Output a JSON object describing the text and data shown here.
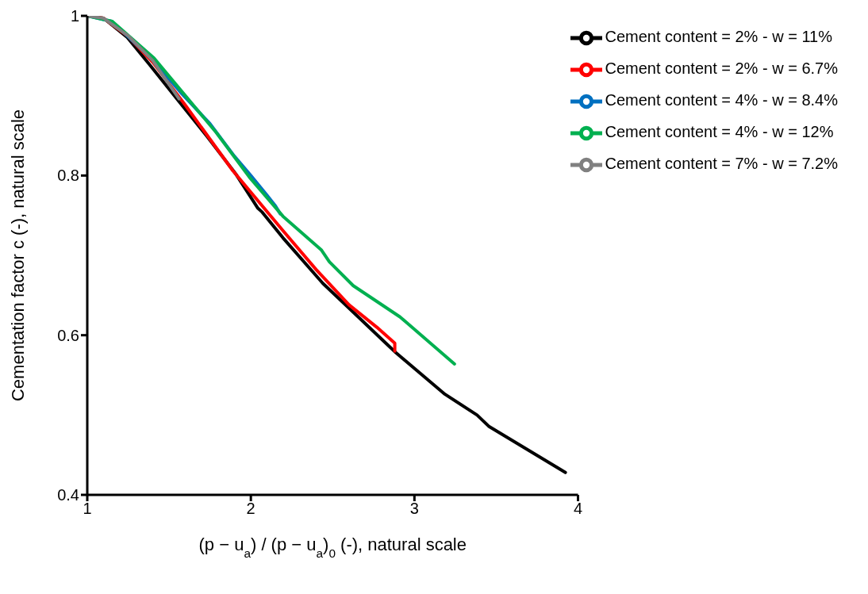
{
  "chart_data": {
    "type": "line",
    "xlabel": "(p − u$_{a}$) / (p − u$_{a}$)$_{0}$ (-), natural scale",
    "ylabel": "Cementation factor c (-), natural scale",
    "xlim": [
      1,
      4
    ],
    "xticks": [
      1,
      2,
      3,
      4
    ],
    "ylim": [
      0.4,
      1
    ],
    "yticks": [
      0.4,
      0.6,
      0.8,
      1
    ],
    "legend": "top right",
    "series": [
      {
        "name": "Cement content = 2% - w = 11%",
        "color": "#000000",
        "x": [
          1,
          1.1,
          1.245,
          1.377,
          1.56,
          1.736,
          1.911,
          2.043,
          2.07,
          2.196,
          2.44,
          2.656,
          2.81,
          2.887,
          3.187,
          3.383,
          3.454,
          3.923
        ],
        "values": [
          1,
          0.997,
          0.973,
          0.94,
          0.893,
          0.848,
          0.801,
          0.759,
          0.754,
          0.722,
          0.665,
          0.623,
          0.593,
          0.578,
          0.526,
          0.5,
          0.486,
          0.428
        ]
      },
      {
        "name": "Cement content = 2% - w = 6.7%",
        "color": "#ff0000",
        "x": [
          1,
          1.1,
          1.245,
          1.4,
          1.6,
          1.89,
          2.196,
          2.4,
          2.6,
          2.77,
          2.88,
          2.88
        ],
        "values": [
          1,
          0.997,
          0.975,
          0.942,
          0.888,
          0.806,
          0.731,
          0.682,
          0.638,
          0.61,
          0.59,
          0.58
        ]
      },
      {
        "name": "Cement content = 4% - w = 8.4%",
        "color": "#0070c0",
        "x": [
          1,
          1.15,
          1.4,
          1.58,
          1.75,
          1.9,
          2.0,
          2.1,
          2.15,
          2.18
        ],
        "values": [
          1,
          0.993,
          0.945,
          0.902,
          0.865,
          0.824,
          0.8,
          0.775,
          0.762,
          0.752
        ]
      },
      {
        "name": "Cement content = 4% - w = 12%",
        "color": "#00b050",
        "x": [
          1,
          1.153,
          1.408,
          1.583,
          1.788,
          1.991,
          2.196,
          2.43,
          2.48,
          2.626,
          2.911,
          3.245
        ],
        "values": [
          1,
          0.993,
          0.947,
          0.904,
          0.854,
          0.798,
          0.749,
          0.707,
          0.692,
          0.662,
          0.623,
          0.564
        ]
      },
      {
        "name": "Cement content = 7% - w = 7.2%",
        "color": "#808080",
        "x": [
          1,
          1.1,
          1.25,
          1.4,
          1.561
        ],
        "values": [
          1,
          0.997,
          0.975,
          0.944,
          0.896
        ]
      }
    ]
  }
}
